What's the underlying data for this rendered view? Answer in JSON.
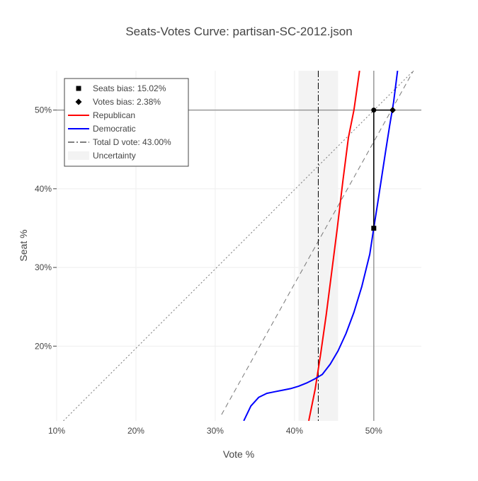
{
  "chart_data": {
    "type": "line",
    "title": "Seats-Votes Curve: partisan-SC-2012.json",
    "xlabel": "Vote %",
    "ylabel": "Seat %",
    "xlim": [
      10,
      56
    ],
    "ylim": [
      10.5,
      55
    ],
    "x_ticks": [
      10,
      20,
      30,
      40,
      50
    ],
    "x_tick_labels": [
      "10%",
      "20%",
      "30%",
      "40%",
      "50%"
    ],
    "y_ticks": [
      20,
      30,
      40,
      50
    ],
    "y_tick_labels": [
      "20%",
      "30%",
      "40%",
      "50%"
    ],
    "grid": true,
    "legend_position": "top-left",
    "series": [
      {
        "name": "Republican",
        "color": "#ff0000",
        "x": [
          41.8,
          42.6,
          43.3,
          44.0,
          44.7,
          45.4,
          46.1,
          46.8,
          47.5,
          48.2
        ],
        "y": [
          10.5,
          14.5,
          19.0,
          24.0,
          29.5,
          35.0,
          41.0,
          46.5,
          50.0,
          55.0
        ]
      },
      {
        "name": "Democratic",
        "color": "#0000ff",
        "x": [
          33.6,
          34.5,
          35.5,
          36.5,
          37.5,
          38.5,
          39.5,
          40.5,
          41.5,
          42.5,
          43.0,
          43.5,
          44.5,
          45.5,
          46.5,
          47.5,
          48.5,
          49.5,
          50.0,
          50.5,
          51.0,
          51.5,
          52.0,
          52.5,
          53.0
        ],
        "y": [
          10.5,
          12.4,
          13.5,
          14.0,
          14.2,
          14.4,
          14.6,
          14.9,
          15.3,
          15.8,
          16.1,
          16.4,
          17.7,
          19.4,
          21.6,
          24.3,
          27.6,
          31.7,
          35.0,
          38.2,
          41.5,
          44.8,
          48.0,
          51.0,
          55.0
        ]
      }
    ],
    "diagonal_lines": [
      {
        "style": "dotted",
        "color": "#777777",
        "x": [
          10.85,
          55.0
        ],
        "y": [
          10.5,
          55.0
        ]
      },
      {
        "style": "dashed",
        "color": "#777777",
        "x": [
          30.8,
          55.0
        ],
        "y": [
          11.3,
          55.0
        ]
      }
    ],
    "reference_lines": {
      "hline_y": 50,
      "vline_x": 50,
      "color": "#999999"
    },
    "total_d_vote": {
      "name": "Total D vote: 43.00%",
      "x": 43.0,
      "color": "#000000"
    },
    "uncertainty": {
      "name": "Uncertainty",
      "x_range": [
        40.5,
        45.5
      ],
      "color": "#f3f3f3"
    },
    "markers": [
      {
        "name": "Seats bias: 15.02%",
        "symbol": "square",
        "x": 50.0,
        "y": 34.98
      },
      {
        "name": "Votes bias: 2.38%",
        "symbol": "diamond",
        "x": 52.38,
        "y": 50.0
      }
    ],
    "circle_markers": [
      {
        "x": 50.0,
        "y": 50.0
      }
    ],
    "bias_segments": [
      {
        "x": [
          50.0,
          50.0
        ],
        "y": [
          34.98,
          50.0
        ]
      },
      {
        "x": [
          50.0,
          52.38
        ],
        "y": [
          50.0,
          50.0
        ]
      }
    ],
    "legend": [
      {
        "key": "seats_bias",
        "label": "Seats bias: 15.02%",
        "symbol": "square"
      },
      {
        "key": "votes_bias",
        "label": "Votes bias: 2.38%",
        "symbol": "diamond"
      },
      {
        "key": "republican",
        "label": "Republican",
        "symbol": "line",
        "color": "#ff0000"
      },
      {
        "key": "democratic",
        "label": "Democratic",
        "symbol": "line",
        "color": "#0000ff"
      },
      {
        "key": "total_d_vote",
        "label": "Total D vote: 43.00%",
        "symbol": "dashdot",
        "color": "#000000"
      },
      {
        "key": "uncertainty",
        "label": "Uncertainty",
        "symbol": "band",
        "color": "#f3f3f3"
      }
    ]
  }
}
